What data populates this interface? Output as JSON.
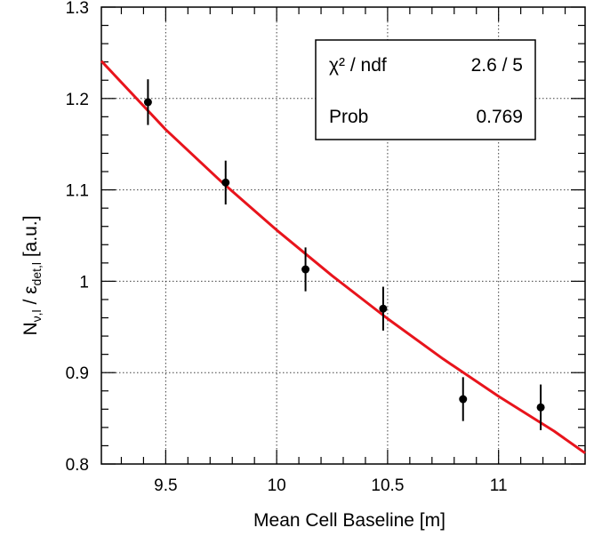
{
  "chart_data": {
    "type": "scatter",
    "xlabel": "Mean Cell Baseline [m]",
    "ylabel": {
      "n_main": "N",
      "n_sub": "ν,l",
      "slash": " / ",
      "eps_main": "ε",
      "eps_sub": "det,l",
      "unit": " [a.u.]"
    },
    "xlim": [
      9.21,
      11.39
    ],
    "ylim": [
      0.8,
      1.3
    ],
    "x_ticks": [
      9.5,
      10,
      10.5,
      11
    ],
    "x_tick_labels": [
      "9.5",
      "10",
      "10.5",
      "11"
    ],
    "y_ticks": [
      0.8,
      0.9,
      1.0,
      1.1,
      1.2,
      1.3
    ],
    "y_tick_labels": [
      "0.8",
      "0.9",
      "1",
      "1.1",
      "1.2",
      "1.3"
    ],
    "grid": true,
    "series": [
      {
        "x": [
          9.42,
          9.77,
          10.13,
          10.48,
          10.84,
          11.19
        ],
        "y": [
          1.196,
          1.108,
          1.013,
          0.97,
          0.871,
          0.862
        ],
        "yerr": [
          0.025,
          0.024,
          0.024,
          0.024,
          0.024,
          0.025
        ],
        "color": "#000000"
      }
    ],
    "fit": {
      "type": "inverse-square",
      "color": "#e8141c",
      "x": [
        9.21,
        9.5,
        9.75,
        10.0,
        10.25,
        10.5,
        10.75,
        11.0,
        11.25,
        11.39
      ],
      "y": [
        1.241,
        1.166,
        1.109,
        1.056,
        1.006,
        0.959,
        0.915,
        0.874,
        0.836,
        0.812
      ]
    },
    "stats_box": {
      "rows": [
        {
          "label": "χ² / ndf",
          "value": "2.6 / 5"
        },
        {
          "label": "Prob",
          "value": "0.769"
        }
      ],
      "position": "top-right"
    }
  }
}
